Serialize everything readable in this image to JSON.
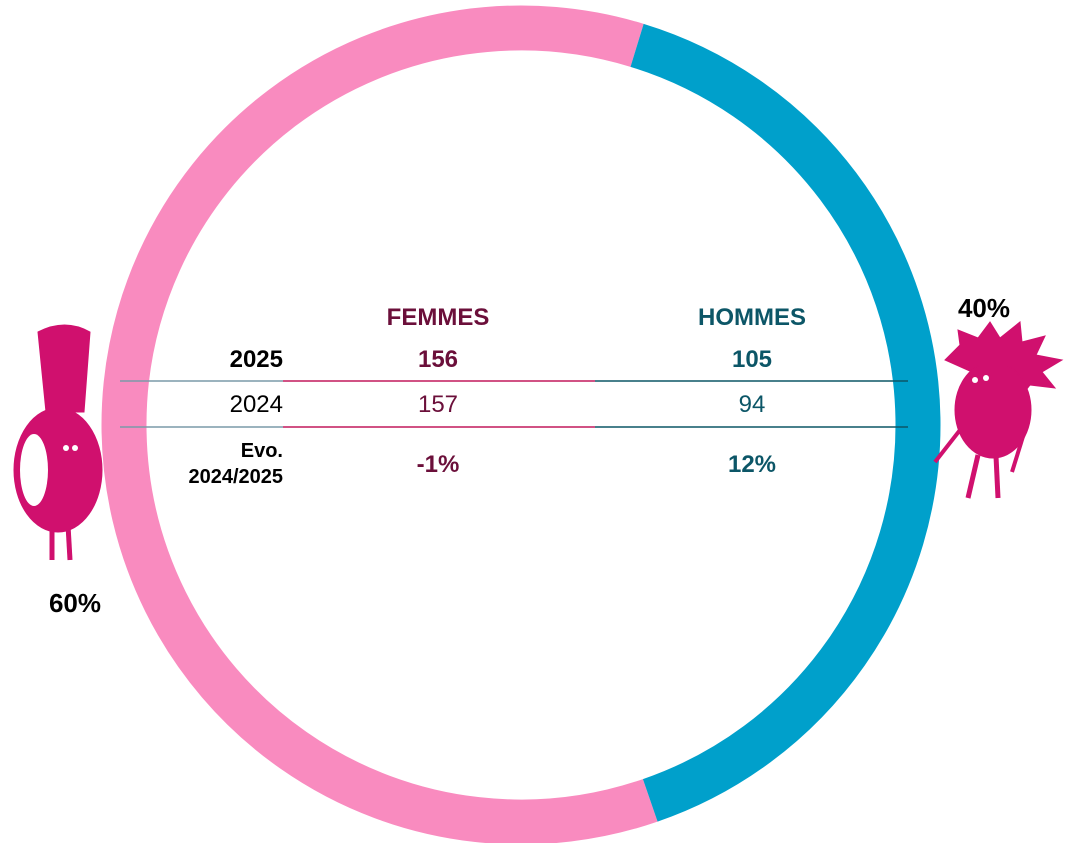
{
  "chart_data": {
    "type": "donut",
    "values": [
      60,
      40
    ],
    "value_labels": [
      "60%",
      "40%"
    ],
    "colors": [
      "#f98bbf",
      "#00a0cb"
    ]
  },
  "table": {
    "columns": [
      "FEMMES",
      "HOMMES"
    ],
    "rows": [
      {
        "label": "2025",
        "cells": [
          "156",
          "105"
        ]
      },
      {
        "label": "2024",
        "cells": [
          "157",
          "94"
        ]
      },
      {
        "label": "Evo. 2024/2025",
        "cells": [
          "-1%",
          "12%"
        ]
      }
    ]
  }
}
